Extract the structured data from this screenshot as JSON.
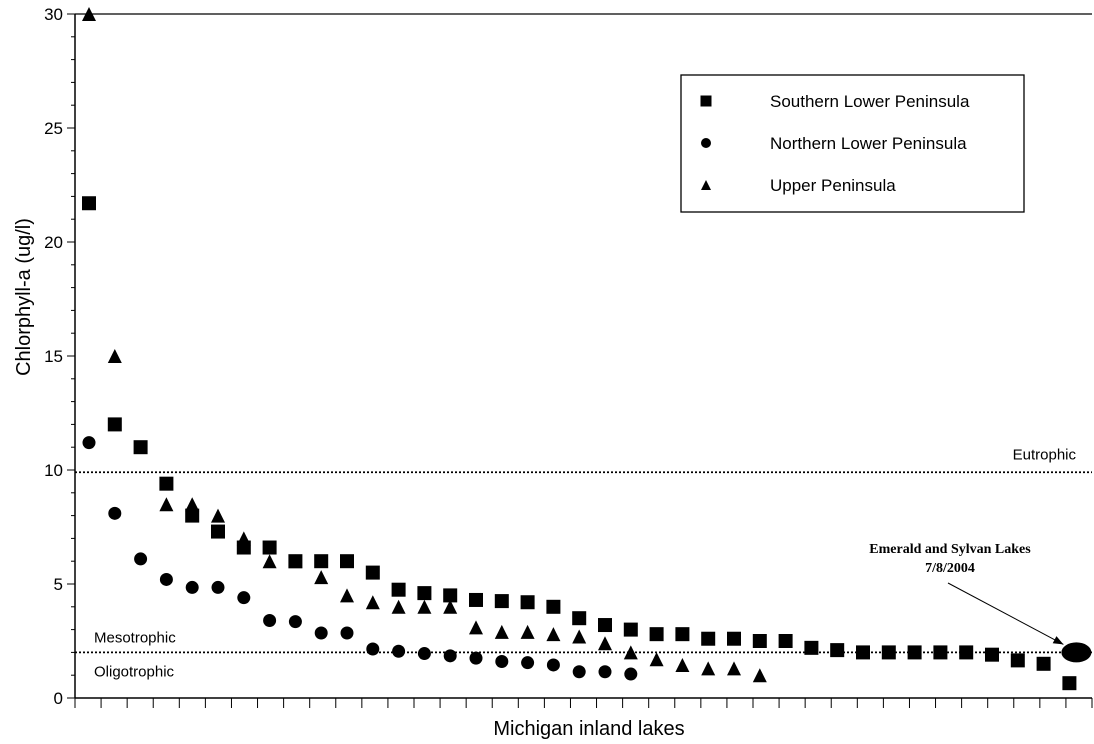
{
  "chart_data": {
    "type": "scatter",
    "title": "",
    "xlabel": "Michigan inland lakes",
    "ylabel": "Chlorphyll-a (ug/l)",
    "ylim": [
      0,
      30
    ],
    "yticks": [
      0,
      5,
      10,
      15,
      20,
      25,
      30
    ],
    "x_count": 39,
    "grid": false,
    "legend_position": "top-right",
    "series": [
      {
        "name": "Southern Lower Peninsula",
        "marker": "square",
        "points": [
          [
            1,
            21.7
          ],
          [
            2,
            12.0
          ],
          [
            3,
            11.0
          ],
          [
            4,
            9.4
          ],
          [
            5,
            8.0
          ],
          [
            6,
            7.3
          ],
          [
            7,
            6.6
          ],
          [
            8,
            6.6
          ],
          [
            9,
            6.0
          ],
          [
            10,
            6.0
          ],
          [
            11,
            6.0
          ],
          [
            12,
            5.5
          ],
          [
            13,
            4.75
          ],
          [
            14,
            4.6
          ],
          [
            15,
            4.5
          ],
          [
            16,
            4.3
          ],
          [
            17,
            4.25
          ],
          [
            18,
            4.2
          ],
          [
            19,
            4.0
          ],
          [
            20,
            3.5
          ],
          [
            21,
            3.2
          ],
          [
            22,
            3.0
          ],
          [
            23,
            2.8
          ],
          [
            24,
            2.8
          ],
          [
            25,
            2.6
          ],
          [
            26,
            2.6
          ],
          [
            27,
            2.5
          ],
          [
            28,
            2.5
          ],
          [
            29,
            2.2
          ],
          [
            30,
            2.1
          ],
          [
            31,
            2.0
          ],
          [
            32,
            2.0
          ],
          [
            33,
            2.0
          ],
          [
            34,
            2.0
          ],
          [
            35,
            2.0
          ],
          [
            36,
            1.9
          ],
          [
            37,
            1.65
          ],
          [
            38,
            1.5
          ],
          [
            39,
            0.65
          ]
        ]
      },
      {
        "name": "Northern Lower Peninsula",
        "marker": "circle",
        "points": [
          [
            1,
            11.2
          ],
          [
            2,
            8.1
          ],
          [
            3,
            6.1
          ],
          [
            4,
            5.2
          ],
          [
            5,
            4.85
          ],
          [
            6,
            4.85
          ],
          [
            7,
            4.4
          ],
          [
            8,
            3.4
          ],
          [
            9,
            3.35
          ],
          [
            10,
            2.85
          ],
          [
            11,
            2.85
          ],
          [
            12,
            2.15
          ],
          [
            13,
            2.05
          ],
          [
            14,
            1.95
          ],
          [
            15,
            1.85
          ],
          [
            16,
            1.75
          ],
          [
            17,
            1.6
          ],
          [
            18,
            1.55
          ],
          [
            19,
            1.45
          ],
          [
            20,
            1.15
          ],
          [
            21,
            1.15
          ],
          [
            22,
            1.05
          ]
        ]
      },
      {
        "name": "Upper Peninsula",
        "marker": "triangle",
        "points": [
          [
            1,
            30.0
          ],
          [
            2,
            15.0
          ],
          [
            4,
            8.5
          ],
          [
            5,
            8.5
          ],
          [
            6,
            8.0
          ],
          [
            7,
            7.0
          ],
          [
            8,
            6.0
          ],
          [
            9,
            6.0
          ],
          [
            10,
            5.3
          ],
          [
            11,
            4.5
          ],
          [
            12,
            4.2
          ],
          [
            13,
            4.0
          ],
          [
            14,
            4.0
          ],
          [
            15,
            4.0
          ],
          [
            16,
            3.1
          ],
          [
            17,
            2.9
          ],
          [
            18,
            2.9
          ],
          [
            19,
            2.8
          ],
          [
            20,
            2.7
          ],
          [
            21,
            2.4
          ],
          [
            22,
            2.0
          ],
          [
            23,
            1.7
          ],
          [
            24,
            1.45
          ],
          [
            25,
            1.3
          ],
          [
            26,
            1.3
          ],
          [
            27,
            1.0
          ]
        ]
      }
    ],
    "thresholds": [
      {
        "label": "Eutrophic",
        "value": 9.9
      },
      {
        "label": "Mesotrophic",
        "value": 2.0
      },
      {
        "label": "Oligotrophic",
        "value": 2.0
      }
    ],
    "annotation": {
      "line1": "Emerald and Sylvan Lakes",
      "line2": "7/8/2004",
      "point": [
        39,
        2.0
      ]
    }
  }
}
